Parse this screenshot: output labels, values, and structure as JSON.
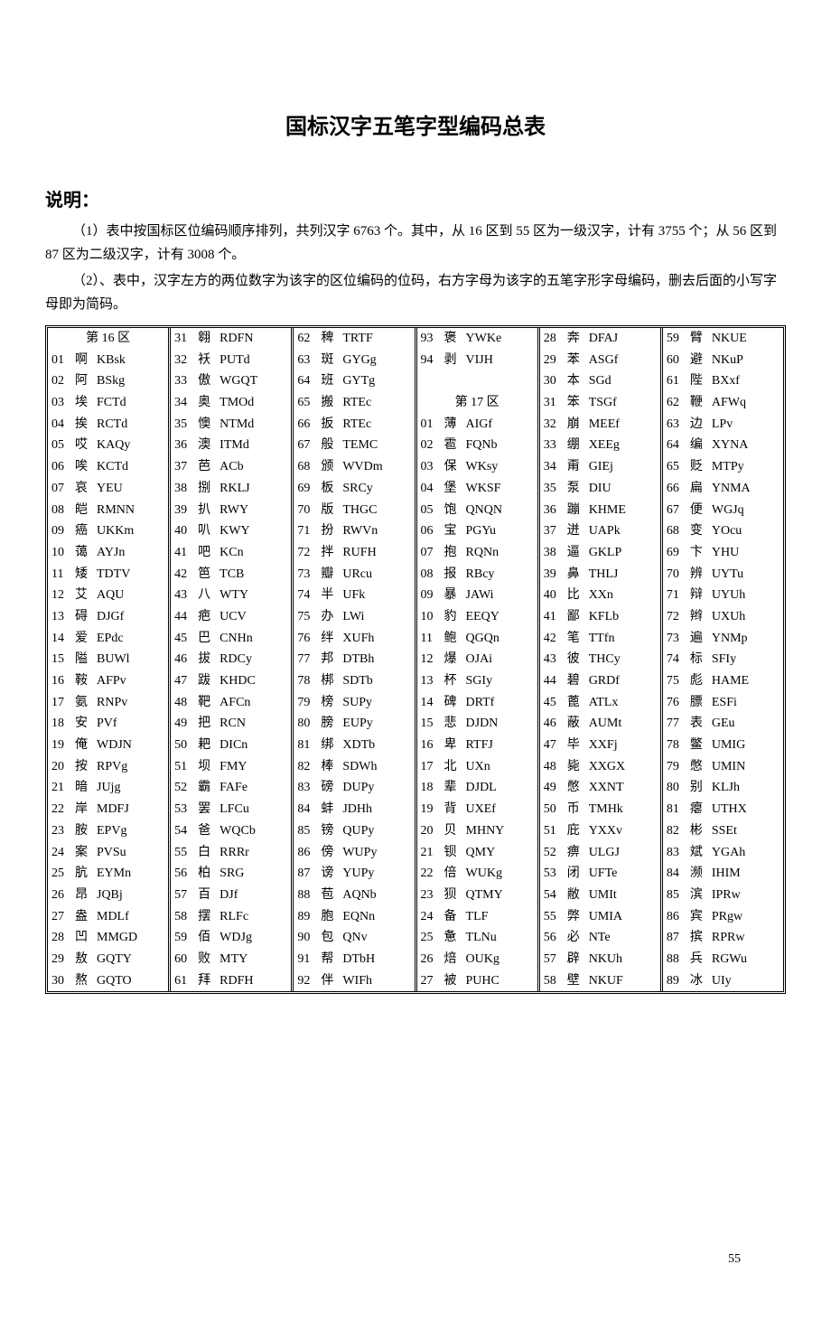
{
  "title": "国标汉字五笔字型编码总表",
  "section_heading": "说明：",
  "notes": [
    "（1）表中按国标区位编码顺序排列，共列汉字 6763 个。其中，从 16 区到 55 区为一级汉字，计有 3755 个；从 56 区到 87 区为二级汉字，计有 3008 个。",
    "（2）、表中，汉字左方的两位数字为该字的区位编码的位码，右方字母为该字的五笔字形字母编码，删去后面的小写字母即为简码。"
  ],
  "page_number": "55",
  "columns": [
    {
      "header": "第 16 区",
      "rows": [
        {
          "n": "01",
          "c": "啊",
          "k": "KBsk"
        },
        {
          "n": "02",
          "c": "阿",
          "k": "BSkg"
        },
        {
          "n": "03",
          "c": "埃",
          "k": "FCTd"
        },
        {
          "n": "04",
          "c": "挨",
          "k": "RCTd"
        },
        {
          "n": "05",
          "c": "哎",
          "k": "KAQy"
        },
        {
          "n": "06",
          "c": "唉",
          "k": "KCTd"
        },
        {
          "n": "07",
          "c": "哀",
          "k": "YEU"
        },
        {
          "n": "08",
          "c": "皑",
          "k": "RMNN"
        },
        {
          "n": "09",
          "c": "癌",
          "k": "UKKm"
        },
        {
          "n": "10",
          "c": "蔼",
          "k": "AYJn"
        },
        {
          "n": "11",
          "c": "矮",
          "k": "TDTV"
        },
        {
          "n": "12",
          "c": "艾",
          "k": "AQU"
        },
        {
          "n": "13",
          "c": "碍",
          "k": "DJGf"
        },
        {
          "n": "14",
          "c": "爱",
          "k": "EPdc"
        },
        {
          "n": "15",
          "c": "隘",
          "k": "BUWl"
        },
        {
          "n": "16",
          "c": "鞍",
          "k": "AFPv"
        },
        {
          "n": "17",
          "c": "氨",
          "k": "RNPv"
        },
        {
          "n": "18",
          "c": "安",
          "k": "PVf"
        },
        {
          "n": "19",
          "c": "俺",
          "k": "WDJN"
        },
        {
          "n": "20",
          "c": "按",
          "k": "RPVg"
        },
        {
          "n": "21",
          "c": "暗",
          "k": "JUjg"
        },
        {
          "n": "22",
          "c": "岸",
          "k": "MDFJ"
        },
        {
          "n": "23",
          "c": "胺",
          "k": "EPVg"
        },
        {
          "n": "24",
          "c": "案",
          "k": "PVSu"
        },
        {
          "n": "25",
          "c": "肮",
          "k": "EYMn"
        },
        {
          "n": "26",
          "c": "昂",
          "k": "JQBj"
        },
        {
          "n": "27",
          "c": "盎",
          "k": "MDLf"
        },
        {
          "n": "28",
          "c": "凹",
          "k": "MMGD"
        },
        {
          "n": "29",
          "c": "敖",
          "k": "GQTY"
        },
        {
          "n": "30",
          "c": "熬",
          "k": "GQTO"
        }
      ]
    },
    {
      "rows": [
        {
          "n": "31",
          "c": "翱",
          "k": "RDFN"
        },
        {
          "n": "32",
          "c": "袄",
          "k": "PUTd"
        },
        {
          "n": "33",
          "c": "傲",
          "k": "WGQT"
        },
        {
          "n": "34",
          "c": "奥",
          "k": "TMOd"
        },
        {
          "n": "35",
          "c": "懊",
          "k": "NTMd"
        },
        {
          "n": "36",
          "c": "澳",
          "k": "ITMd"
        },
        {
          "n": "37",
          "c": "芭",
          "k": "ACb"
        },
        {
          "n": "38",
          "c": "捌",
          "k": "RKLJ"
        },
        {
          "n": "39",
          "c": "扒",
          "k": "RWY"
        },
        {
          "n": "40",
          "c": "叭",
          "k": "KWY"
        },
        {
          "n": "41",
          "c": "吧",
          "k": "KCn"
        },
        {
          "n": "42",
          "c": "笆",
          "k": "TCB"
        },
        {
          "n": "43",
          "c": "八",
          "k": "WTY"
        },
        {
          "n": "44",
          "c": "疤",
          "k": "UCV"
        },
        {
          "n": "45",
          "c": "巴",
          "k": "CNHn"
        },
        {
          "n": "46",
          "c": "拔",
          "k": "RDCy"
        },
        {
          "n": "47",
          "c": "跋",
          "k": "KHDC"
        },
        {
          "n": "48",
          "c": "靶",
          "k": "AFCn"
        },
        {
          "n": "49",
          "c": "把",
          "k": "RCN"
        },
        {
          "n": "50",
          "c": "耙",
          "k": "DICn"
        },
        {
          "n": "51",
          "c": "坝",
          "k": "FMY"
        },
        {
          "n": "52",
          "c": "霸",
          "k": "FAFe"
        },
        {
          "n": "53",
          "c": "罢",
          "k": "LFCu"
        },
        {
          "n": "54",
          "c": "爸",
          "k": "WQCb"
        },
        {
          "n": "55",
          "c": "白",
          "k": "RRRr"
        },
        {
          "n": "56",
          "c": "柏",
          "k": "SRG"
        },
        {
          "n": "57",
          "c": "百",
          "k": "DJf"
        },
        {
          "n": "58",
          "c": "摆",
          "k": "RLFc"
        },
        {
          "n": "59",
          "c": "佰",
          "k": "WDJg"
        },
        {
          "n": "60",
          "c": "败",
          "k": "MTY"
        },
        {
          "n": "61",
          "c": "拜",
          "k": "RDFH"
        }
      ]
    },
    {
      "rows": [
        {
          "n": "62",
          "c": "稗",
          "k": "TRTF"
        },
        {
          "n": "63",
          "c": "斑",
          "k": "GYGg"
        },
        {
          "n": "64",
          "c": "班",
          "k": "GYTg"
        },
        {
          "n": "65",
          "c": "搬",
          "k": "RTEc"
        },
        {
          "n": "66",
          "c": "扳",
          "k": "RTEc"
        },
        {
          "n": "67",
          "c": "般",
          "k": "TEMC"
        },
        {
          "n": "68",
          "c": "颁",
          "k": "WVDm"
        },
        {
          "n": "69",
          "c": "板",
          "k": "SRCy"
        },
        {
          "n": "70",
          "c": "版",
          "k": "THGC"
        },
        {
          "n": "71",
          "c": "扮",
          "k": "RWVn"
        },
        {
          "n": "72",
          "c": "拌",
          "k": "RUFH"
        },
        {
          "n": "73",
          "c": "瓣",
          "k": "URcu"
        },
        {
          "n": "74",
          "c": "半",
          "k": "UFk"
        },
        {
          "n": "75",
          "c": "办",
          "k": "LWi"
        },
        {
          "n": "76",
          "c": "绊",
          "k": "XUFh"
        },
        {
          "n": "77",
          "c": "邦",
          "k": "DTBh"
        },
        {
          "n": "78",
          "c": "梆",
          "k": "SDTb"
        },
        {
          "n": "79",
          "c": "榜",
          "k": "SUPy"
        },
        {
          "n": "80",
          "c": "膀",
          "k": "EUPy"
        },
        {
          "n": "81",
          "c": "绑",
          "k": "XDTb"
        },
        {
          "n": "82",
          "c": "棒",
          "k": "SDWh"
        },
        {
          "n": "83",
          "c": "磅",
          "k": "DUPy"
        },
        {
          "n": "84",
          "c": "蚌",
          "k": "JDHh"
        },
        {
          "n": "85",
          "c": "镑",
          "k": "QUPy"
        },
        {
          "n": "86",
          "c": "傍",
          "k": "WUPy"
        },
        {
          "n": "87",
          "c": "谤",
          "k": "YUPy"
        },
        {
          "n": "88",
          "c": "苞",
          "k": "AQNb"
        },
        {
          "n": "89",
          "c": "胞",
          "k": "EQNn"
        },
        {
          "n": "90",
          "c": "包",
          "k": "QNv"
        },
        {
          "n": "91",
          "c": "帮",
          "k": "DTbH"
        },
        {
          "n": "92",
          "c": "伴",
          "k": "WIFh"
        }
      ]
    },
    {
      "rows": [
        {
          "n": "93",
          "c": "褒",
          "k": "YWKe"
        },
        {
          "n": "94",
          "c": "剥",
          "k": "VIJH"
        }
      ],
      "header_after_blank": "第 17 区",
      "rows2": [
        {
          "n": "01",
          "c": "薄",
          "k": "AIGf"
        },
        {
          "n": "02",
          "c": "雹",
          "k": "FQNb"
        },
        {
          "n": "03",
          "c": "保",
          "k": "WKsy"
        },
        {
          "n": "04",
          "c": "堡",
          "k": "WKSF"
        },
        {
          "n": "05",
          "c": "饱",
          "k": "QNQN"
        },
        {
          "n": "06",
          "c": "宝",
          "k": "PGYu"
        },
        {
          "n": "07",
          "c": "抱",
          "k": "RQNn"
        },
        {
          "n": "08",
          "c": "报",
          "k": "RBcy"
        },
        {
          "n": "09",
          "c": "暴",
          "k": "JAWi"
        },
        {
          "n": "10",
          "c": "豹",
          "k": "EEQY"
        },
        {
          "n": "11",
          "c": "鲍",
          "k": "QGQn"
        },
        {
          "n": "12",
          "c": "爆",
          "k": "OJAi"
        },
        {
          "n": "13",
          "c": "杯",
          "k": "SGIy"
        },
        {
          "n": "14",
          "c": "碑",
          "k": "DRTf"
        },
        {
          "n": "15",
          "c": "悲",
          "k": "DJDN"
        },
        {
          "n": "16",
          "c": "卑",
          "k": "RTFJ"
        },
        {
          "n": "17",
          "c": "北",
          "k": "UXn"
        },
        {
          "n": "18",
          "c": "辈",
          "k": "DJDL"
        },
        {
          "n": "19",
          "c": "背",
          "k": "UXEf"
        },
        {
          "n": "20",
          "c": "贝",
          "k": "MHNY"
        },
        {
          "n": "21",
          "c": "钡",
          "k": "QMY"
        },
        {
          "n": "22",
          "c": "倍",
          "k": "WUKg"
        },
        {
          "n": "23",
          "c": "狈",
          "k": "QTMY"
        },
        {
          "n": "24",
          "c": "备",
          "k": "TLF"
        },
        {
          "n": "25",
          "c": "惫",
          "k": "TLNu"
        },
        {
          "n": "26",
          "c": "焙",
          "k": "OUKg"
        },
        {
          "n": "27",
          "c": "被",
          "k": "PUHC"
        }
      ]
    },
    {
      "rows": [
        {
          "n": "28",
          "c": "奔",
          "k": "DFAJ"
        },
        {
          "n": "29",
          "c": "苯",
          "k": "ASGf"
        },
        {
          "n": "30",
          "c": "本",
          "k": "SGd"
        },
        {
          "n": "31",
          "c": "笨",
          "k": "TSGf"
        },
        {
          "n": "32",
          "c": "崩",
          "k": "MEEf"
        },
        {
          "n": "33",
          "c": "绷",
          "k": "XEEg"
        },
        {
          "n": "34",
          "c": "甭",
          "k": "GIEj"
        },
        {
          "n": "35",
          "c": "泵",
          "k": "DIU"
        },
        {
          "n": "36",
          "c": "蹦",
          "k": "KHME"
        },
        {
          "n": "37",
          "c": "迸",
          "k": "UAPk"
        },
        {
          "n": "38",
          "c": "逼",
          "k": "GKLP"
        },
        {
          "n": "39",
          "c": "鼻",
          "k": "THLJ"
        },
        {
          "n": "40",
          "c": "比",
          "k": "XXn"
        },
        {
          "n": "41",
          "c": "鄙",
          "k": "KFLb"
        },
        {
          "n": "42",
          "c": "笔",
          "k": "TTfn"
        },
        {
          "n": "43",
          "c": "彼",
          "k": "THCy"
        },
        {
          "n": "44",
          "c": "碧",
          "k": "GRDf"
        },
        {
          "n": "45",
          "c": "蓖",
          "k": "ATLx"
        },
        {
          "n": "46",
          "c": "蔽",
          "k": "AUMt"
        },
        {
          "n": "47",
          "c": "毕",
          "k": "XXFj"
        },
        {
          "n": "48",
          "c": "毙",
          "k": "XXGX"
        },
        {
          "n": "49",
          "c": "憋",
          "k": "XXNT"
        },
        {
          "n": "50",
          "c": "币",
          "k": "TMHk"
        },
        {
          "n": "51",
          "c": "庇",
          "k": "YXXv"
        },
        {
          "n": "52",
          "c": "痹",
          "k": "ULGJ"
        },
        {
          "n": "53",
          "c": "闭",
          "k": "UFTe"
        },
        {
          "n": "54",
          "c": "敝",
          "k": "UMIt"
        },
        {
          "n": "55",
          "c": "弊",
          "k": "UMIA"
        },
        {
          "n": "56",
          "c": "必",
          "k": "NTe"
        },
        {
          "n": "57",
          "c": "辟",
          "k": "NKUh"
        },
        {
          "n": "58",
          "c": "壁",
          "k": "NKUF"
        }
      ]
    },
    {
      "rows": [
        {
          "n": "59",
          "c": "臂",
          "k": "NKUE"
        },
        {
          "n": "60",
          "c": "避",
          "k": "NKuP"
        },
        {
          "n": "61",
          "c": "陛",
          "k": "BXxf"
        },
        {
          "n": "62",
          "c": "鞭",
          "k": "AFWq"
        },
        {
          "n": "63",
          "c": "边",
          "k": "LPv"
        },
        {
          "n": "64",
          "c": "编",
          "k": "XYNA"
        },
        {
          "n": "65",
          "c": "贬",
          "k": "MTPy"
        },
        {
          "n": "66",
          "c": "扁",
          "k": "YNMA"
        },
        {
          "n": "67",
          "c": "便",
          "k": "WGJq"
        },
        {
          "n": "68",
          "c": "变",
          "k": "YOcu"
        },
        {
          "n": "69",
          "c": "卞",
          "k": "YHU"
        },
        {
          "n": "70",
          "c": "辨",
          "k": "UYTu"
        },
        {
          "n": "71",
          "c": "辩",
          "k": "UYUh"
        },
        {
          "n": "72",
          "c": "辫",
          "k": "UXUh"
        },
        {
          "n": "73",
          "c": "遍",
          "k": "YNMp"
        },
        {
          "n": "74",
          "c": "标",
          "k": "SFIy"
        },
        {
          "n": "75",
          "c": "彪",
          "k": "HAME"
        },
        {
          "n": "76",
          "c": "膘",
          "k": "ESFi"
        },
        {
          "n": "77",
          "c": "表",
          "k": "GEu"
        },
        {
          "n": "78",
          "c": "鳖",
          "k": "UMIG"
        },
        {
          "n": "79",
          "c": "憋",
          "k": "UMIN"
        },
        {
          "n": "80",
          "c": "别",
          "k": "KLJh"
        },
        {
          "n": "81",
          "c": "瘪",
          "k": "UTHX"
        },
        {
          "n": "82",
          "c": "彬",
          "k": "SSEt"
        },
        {
          "n": "83",
          "c": "斌",
          "k": "YGAh"
        },
        {
          "n": "84",
          "c": "濒",
          "k": "IHIM"
        },
        {
          "n": "85",
          "c": "滨",
          "k": "IPRw"
        },
        {
          "n": "86",
          "c": "宾",
          "k": "PRgw"
        },
        {
          "n": "87",
          "c": "摈",
          "k": "RPRw"
        },
        {
          "n": "88",
          "c": "兵",
          "k": "RGWu"
        },
        {
          "n": "89",
          "c": "冰",
          "k": "UIy"
        }
      ]
    }
  ]
}
